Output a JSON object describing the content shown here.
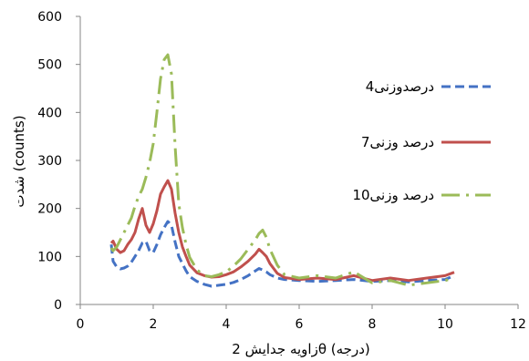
{
  "chart_data": {
    "type": "line",
    "title": "",
    "xlabel": "زاویه جدایش 2θ (درجه)",
    "ylabel": "شدت (counts)",
    "xlim": [
      0,
      12
    ],
    "ylim": [
      0,
      600
    ],
    "x_ticks": [
      0,
      2,
      4,
      6,
      8,
      10,
      12
    ],
    "y_ticks": [
      0,
      100,
      200,
      300,
      400,
      500,
      600
    ],
    "grid": false,
    "legend_position": "right",
    "series": [
      {
        "name": "4درصدوزنی",
        "color": "#4472C4",
        "style": "dashed",
        "x": [
          0.85,
          0.9,
          1.0,
          1.1,
          1.2,
          1.3,
          1.4,
          1.5,
          1.6,
          1.7,
          1.8,
          1.9,
          2.0,
          2.1,
          2.2,
          2.3,
          2.4,
          2.5,
          2.6,
          2.7,
          2.8,
          2.9,
          3.0,
          3.2,
          3.4,
          3.6,
          3.8,
          4.0,
          4.2,
          4.4,
          4.6,
          4.8,
          4.9,
          5.0,
          5.1,
          5.2,
          5.4,
          5.6,
          6.0,
          6.5,
          7.0,
          7.5,
          8.0,
          8.5,
          9.0,
          9.5,
          10.0,
          10.25
        ],
        "y": [
          125,
          90,
          78,
          74,
          76,
          80,
          88,
          100,
          112,
          128,
          132,
          112,
          108,
          125,
          145,
          160,
          173,
          165,
          130,
          100,
          85,
          70,
          58,
          48,
          42,
          38,
          40,
          42,
          46,
          52,
          60,
          70,
          75,
          72,
          68,
          62,
          55,
          52,
          50,
          48,
          50,
          52,
          48,
          50,
          47,
          50,
          52,
          60
        ]
      },
      {
        "name": "7درصد وزنی",
        "color": "#C0504D",
        "style": "solid",
        "x": [
          0.85,
          0.9,
          1.0,
          1.1,
          1.2,
          1.3,
          1.4,
          1.5,
          1.6,
          1.7,
          1.8,
          1.9,
          2.0,
          2.1,
          2.2,
          2.3,
          2.4,
          2.5,
          2.6,
          2.7,
          2.8,
          2.9,
          3.0,
          3.2,
          3.4,
          3.6,
          3.8,
          4.0,
          4.2,
          4.4,
          4.6,
          4.8,
          4.9,
          5.0,
          5.1,
          5.2,
          5.4,
          5.6,
          6.0,
          6.5,
          7.0,
          7.5,
          8.0,
          8.5,
          9.0,
          9.5,
          10.0,
          10.25
        ],
        "y": [
          128,
          132,
          115,
          108,
          112,
          125,
          135,
          150,
          178,
          200,
          165,
          150,
          168,
          195,
          230,
          245,
          258,
          240,
          190,
          150,
          120,
          100,
          82,
          66,
          60,
          57,
          58,
          62,
          68,
          78,
          90,
          105,
          115,
          108,
          100,
          85,
          65,
          56,
          52,
          55,
          52,
          60,
          50,
          55,
          50,
          55,
          60,
          67
        ]
      },
      {
        "name": "10درصد وزنی",
        "color": "#9BBB59",
        "style": "dashdot",
        "x": [
          0.85,
          0.9,
          1.0,
          1.1,
          1.2,
          1.3,
          1.4,
          1.5,
          1.6,
          1.7,
          1.8,
          1.9,
          2.0,
          2.1,
          2.2,
          2.3,
          2.4,
          2.5,
          2.6,
          2.7,
          2.8,
          2.9,
          3.0,
          3.2,
          3.4,
          3.6,
          3.8,
          4.0,
          4.2,
          4.4,
          4.6,
          4.8,
          4.9,
          5.0,
          5.1,
          5.2,
          5.4,
          5.6,
          6.0,
          6.5,
          7.0,
          7.5,
          8.0,
          8.5,
          9.0,
          9.5,
          10.0,
          10.25
        ],
        "y": [
          118,
          112,
          120,
          135,
          150,
          165,
          180,
          205,
          225,
          240,
          265,
          295,
          335,
          400,
          470,
          510,
          520,
          480,
          330,
          210,
          160,
          125,
          98,
          72,
          60,
          58,
          62,
          68,
          80,
          95,
          115,
          135,
          148,
          155,
          140,
          115,
          82,
          62,
          55,
          60,
          55,
          68,
          45,
          50,
          40,
          45,
          50,
          55
        ]
      }
    ]
  }
}
